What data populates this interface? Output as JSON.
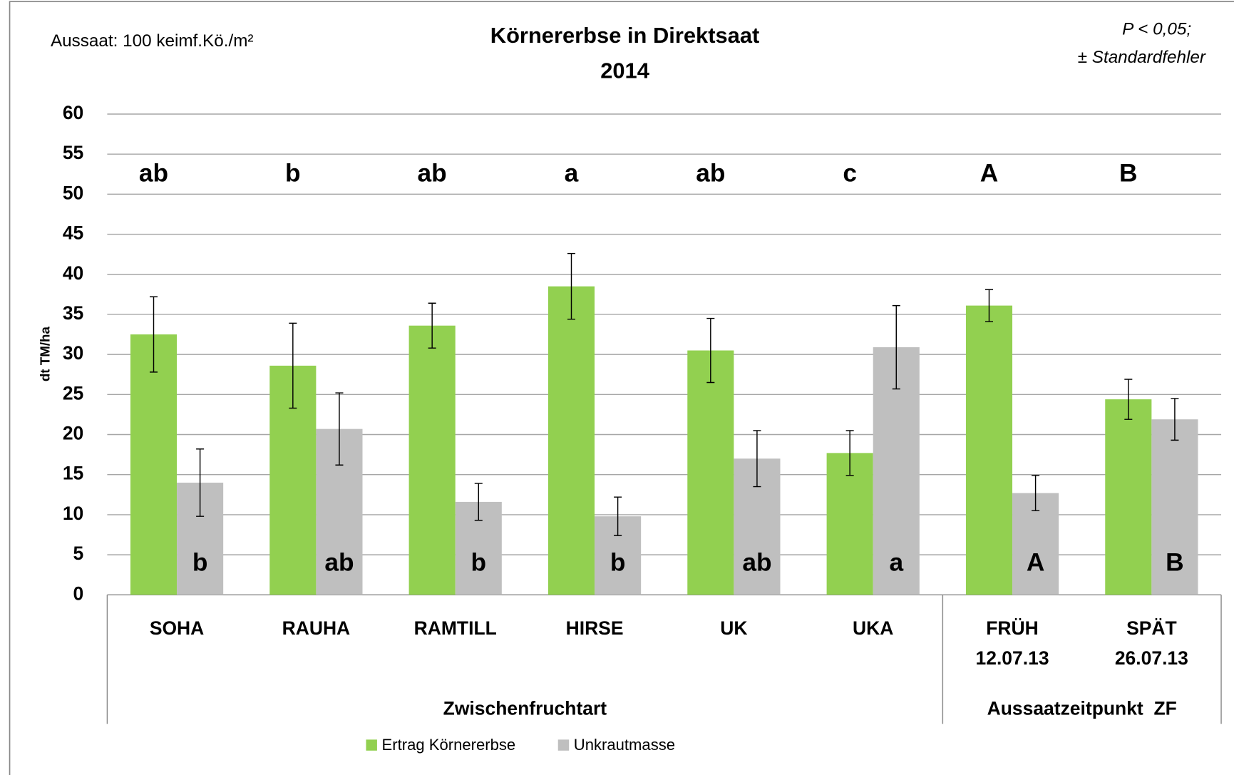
{
  "chart_data": {
    "type": "bar",
    "title": "Körnererbse in Direktsaat",
    "subtitle": "2014",
    "annotations": [
      "Aussaat: 100 keimf.Kö./m²",
      "P < 0,05;",
      "± Standardfehler"
    ],
    "y_label": "dt TM/ha",
    "categories": [
      "SOHA",
      "RAUHA",
      "RAMTILL",
      "HIRSE",
      "UK",
      "UKA",
      "FRÜH",
      "SPÄT"
    ],
    "category_sublabels": [
      null,
      null,
      null,
      null,
      null,
      null,
      "12.07.13",
      "26.07.13"
    ],
    "groups": [
      {
        "name": "Zwischenfruchtart",
        "size": 6
      },
      {
        "name": "Aussaatzeitpunkt  ZF",
        "size": 2
      }
    ],
    "series": [
      {
        "name": "Ertrag Körnererbse",
        "color": "#92d050",
        "values": [
          32.5,
          28.6,
          33.6,
          38.5,
          30.5,
          17.7,
          36.1,
          24.4
        ],
        "errors": [
          4.7,
          5.3,
          2.8,
          4.1,
          4.0,
          2.8,
          2.0,
          2.5
        ],
        "letters": [
          "ab",
          "b",
          "ab",
          "a",
          "ab",
          "c",
          "A",
          "B"
        ]
      },
      {
        "name": "Unkrautmasse",
        "color": "#bfbfbf",
        "values": [
          14.0,
          20.7,
          11.6,
          9.8,
          17.0,
          30.9,
          12.7,
          21.9
        ],
        "errors": [
          4.2,
          4.5,
          2.3,
          2.4,
          3.5,
          5.2,
          2.2,
          2.6
        ],
        "letters": [
          "b",
          "ab",
          "b",
          "b",
          "ab",
          "a",
          "A",
          "B"
        ]
      }
    ],
    "ylim": [
      0,
      60
    ],
    "yticks": [
      0,
      5,
      10,
      15,
      20,
      25,
      30,
      35,
      40,
      45,
      50,
      55,
      60
    ],
    "grid": true
  }
}
